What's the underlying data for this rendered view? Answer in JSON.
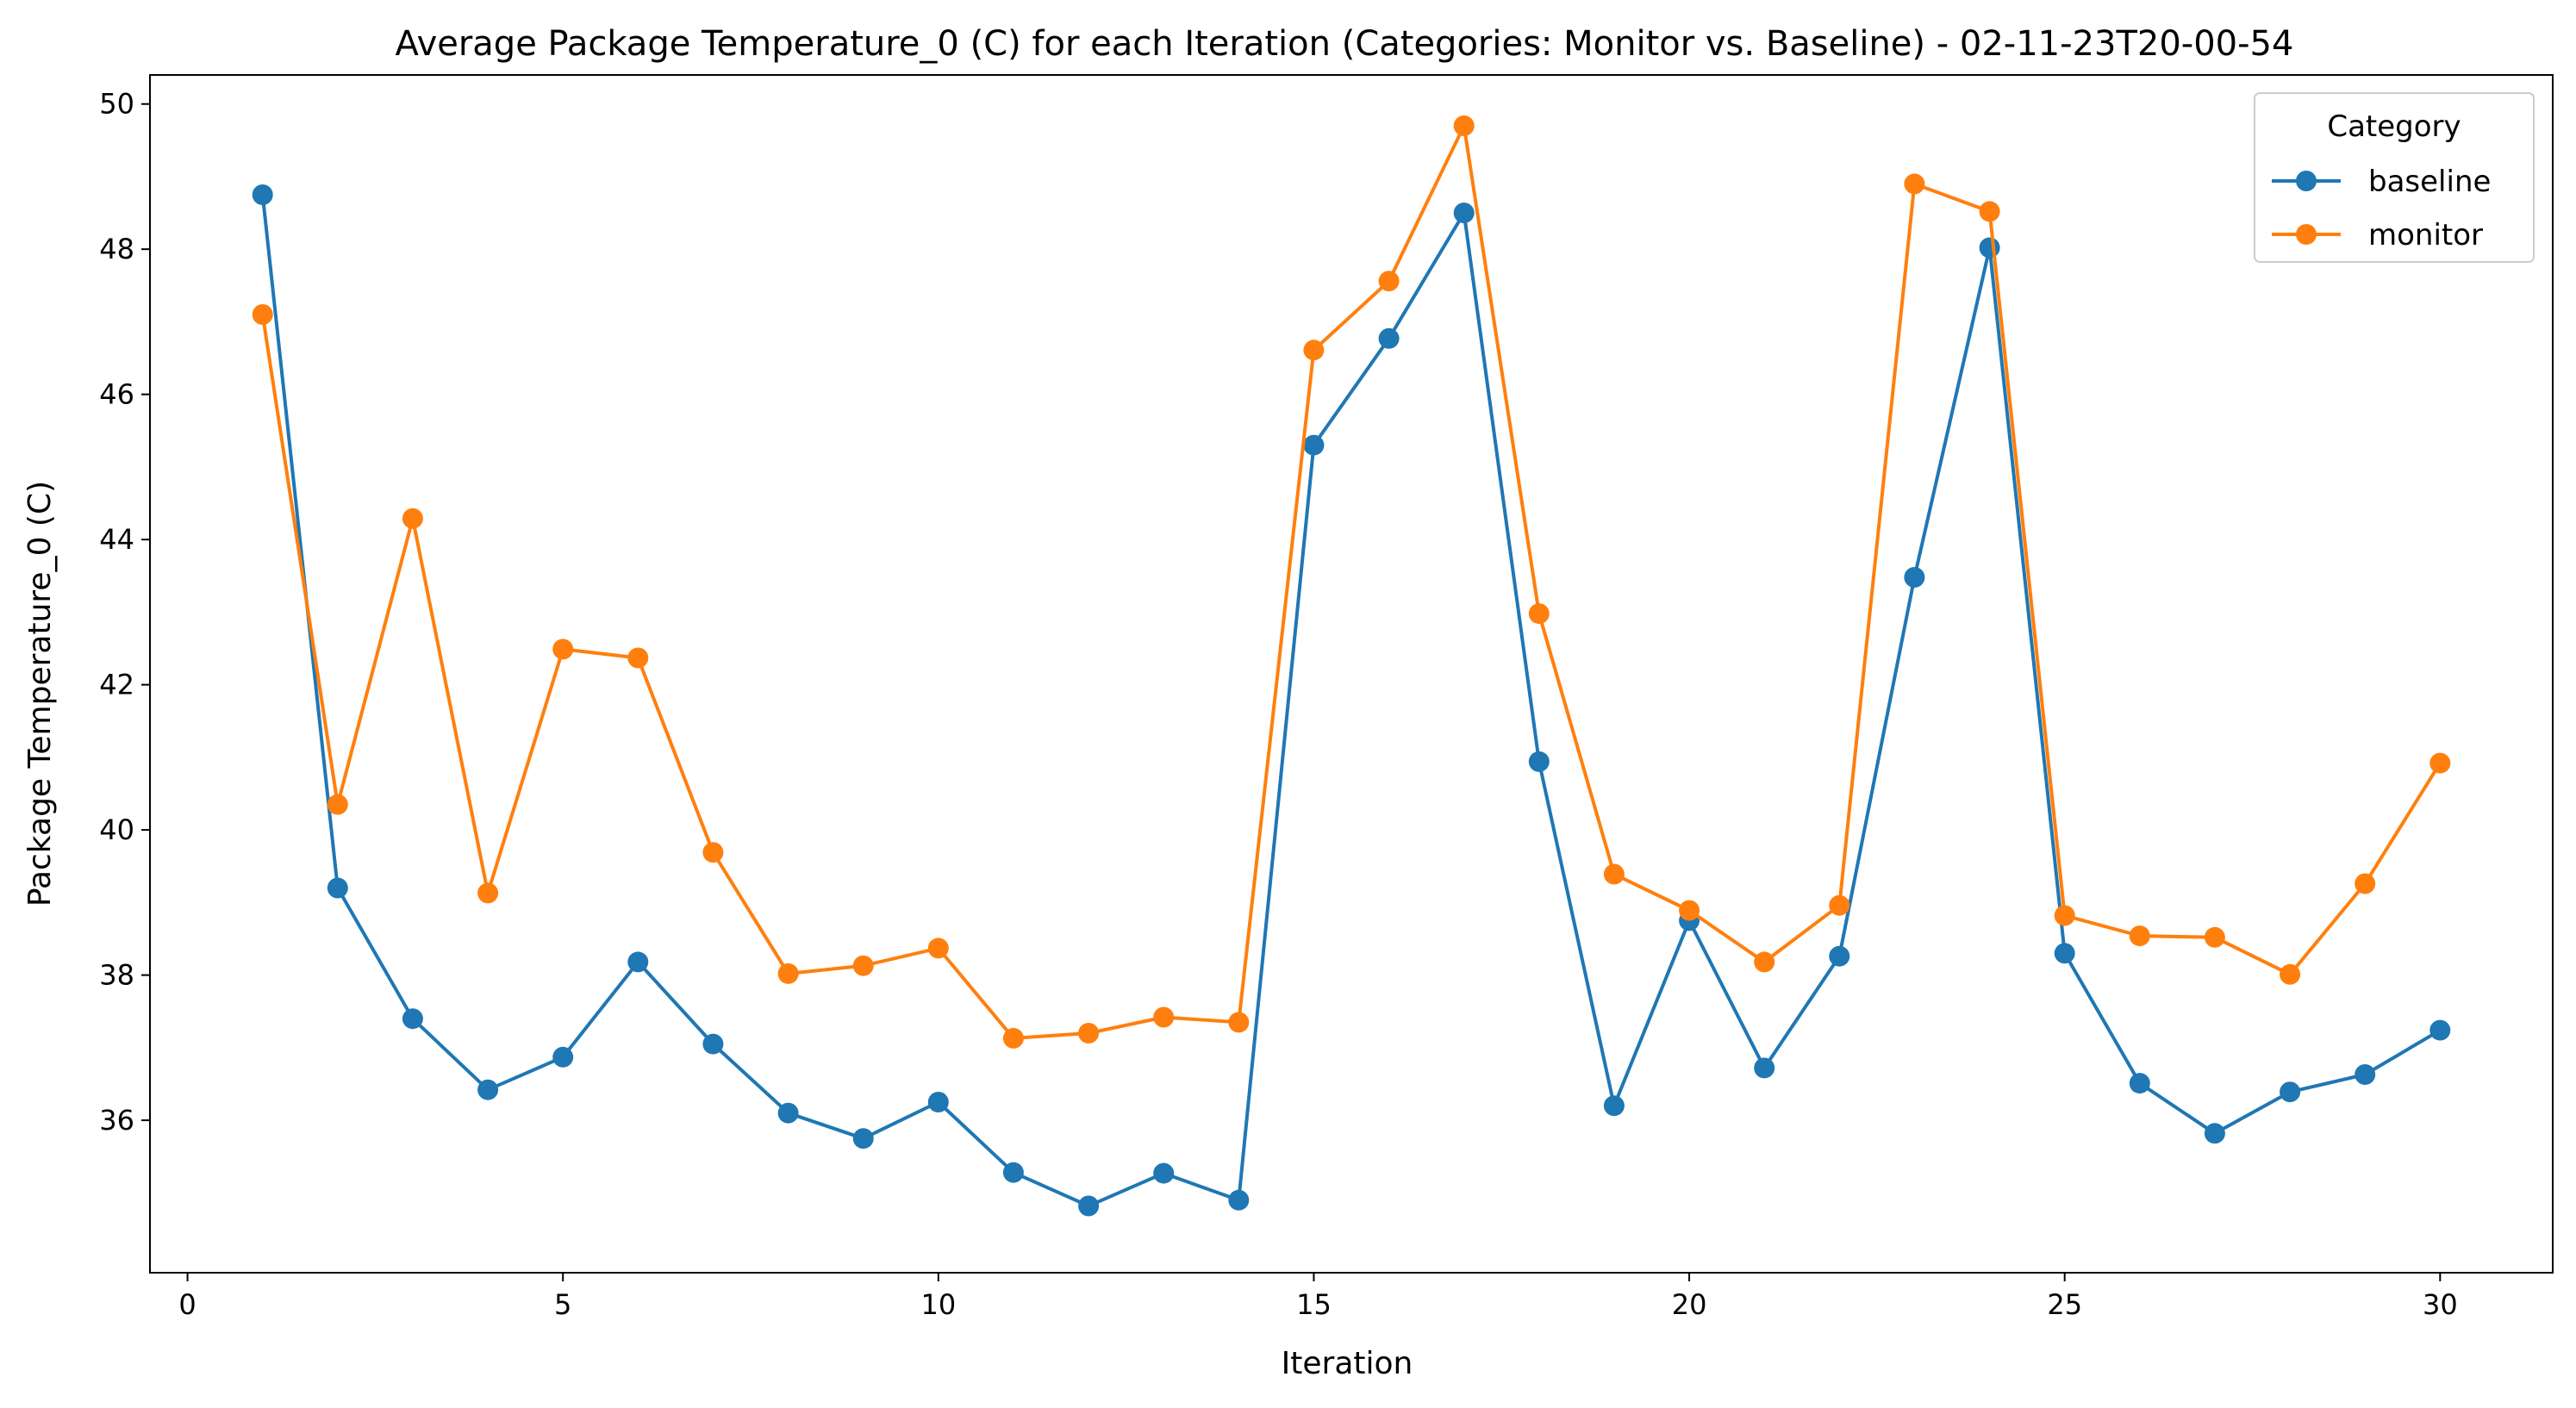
{
  "chart_data": {
    "type": "line",
    "title": "Average Package Temperature_0 (C) for each Iteration (Categories: Monitor vs. Baseline) - 02-11-23T20-00-54",
    "xlabel": "Iteration",
    "ylabel": "Package Temperature_0 (C)",
    "xlim": [
      -0.5,
      31.5
    ],
    "ylim": [
      33.9,
      50.4
    ],
    "xticks": [
      0,
      5,
      10,
      15,
      20,
      25,
      30
    ],
    "yticks": [
      36,
      38,
      40,
      42,
      44,
      46,
      48,
      50
    ],
    "grid": false,
    "legend": {
      "title": "Category",
      "position": "top-right"
    },
    "x": [
      1,
      2,
      3,
      4,
      5,
      6,
      7,
      8,
      9,
      10,
      11,
      12,
      13,
      14,
      15,
      16,
      17,
      18,
      19,
      20,
      21,
      22,
      23,
      24,
      25,
      26,
      27,
      28,
      29,
      30
    ],
    "series": [
      {
        "name": "baseline",
        "color": "#1f77b4",
        "values": [
          48.75,
          39.2,
          37.4,
          36.42,
          36.87,
          38.18,
          37.05,
          36.1,
          35.75,
          36.25,
          35.28,
          34.82,
          35.27,
          34.9,
          45.3,
          46.77,
          48.5,
          40.94,
          36.2,
          38.75,
          36.72,
          38.26,
          43.48,
          48.02,
          38.3,
          36.51,
          35.82,
          36.39,
          36.63,
          37.24
        ]
      },
      {
        "name": "monitor",
        "color": "#ff7f0e",
        "values": [
          47.1,
          40.35,
          44.29,
          39.13,
          42.49,
          42.37,
          39.69,
          38.02,
          38.13,
          38.37,
          37.13,
          37.2,
          37.42,
          37.35,
          46.61,
          47.56,
          49.7,
          42.98,
          39.39,
          38.89,
          38.18,
          38.96,
          48.9,
          48.52,
          38.82,
          38.54,
          38.52,
          38.01,
          39.26,
          40.92
        ]
      }
    ]
  }
}
